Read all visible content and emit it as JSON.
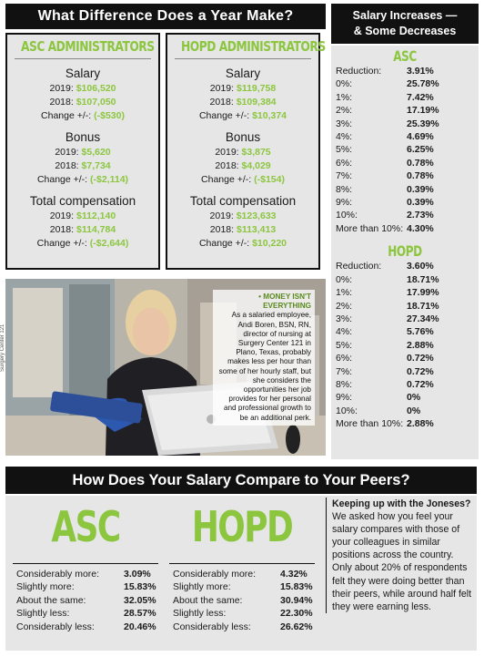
{
  "banner_title": "What Difference Does a Year Make?",
  "asc": {
    "header": "ASC ADMINISTRATORS",
    "salary": {
      "title": "Salary",
      "lines": [
        {
          "label": "2019:",
          "value": "$106,520"
        },
        {
          "label": "2018:",
          "value": "$107,050"
        },
        {
          "label": "Change +/-:",
          "value": "(-$530)"
        }
      ]
    },
    "bonus": {
      "title": "Bonus",
      "lines": [
        {
          "label": "2019:",
          "value": "$5,620"
        },
        {
          "label": "2018:",
          "value": "$7,734"
        },
        {
          "label": "Change +/-:",
          "value": "(-$2,114)"
        }
      ]
    },
    "total": {
      "title": "Total compensation",
      "lines": [
        {
          "label": "2019:",
          "value": "$112,140"
        },
        {
          "label": "2018:",
          "value": "$114,784"
        },
        {
          "label": "Change +/-:",
          "value": "(-$2,644)"
        }
      ]
    }
  },
  "hopd": {
    "header": "HOPD ADMINISTRATORS",
    "salary": {
      "title": "Salary",
      "lines": [
        {
          "label": "2019:",
          "value": "$119,758"
        },
        {
          "label": "2018:",
          "value": "$109,384"
        },
        {
          "label": "Change +/-:",
          "value": "$10,374"
        }
      ]
    },
    "bonus": {
      "title": "Bonus",
      "lines": [
        {
          "label": "2019:",
          "value": "$3,875"
        },
        {
          "label": "2018:",
          "value": "$4,029"
        },
        {
          "label": "Change +/-:",
          "value": "(-$154)"
        }
      ]
    },
    "total": {
      "title": "Total compensation",
      "lines": [
        {
          "label": "2019:",
          "value": "$123,633"
        },
        {
          "label": "2018:",
          "value": "$113,413"
        },
        {
          "label": "Change +/-:",
          "value": "$10,220"
        }
      ]
    }
  },
  "increases": {
    "title_line1": "Salary Increases —",
    "title_line2": "& Some Decreases",
    "asc_title": "ASC",
    "asc_rows": [
      {
        "k": "Reduction:",
        "v": "3.91%"
      },
      {
        "k": "0%:",
        "v": "25.78%"
      },
      {
        "k": "1%:",
        "v": "7.42%"
      },
      {
        "k": "2%:",
        "v": "17.19%"
      },
      {
        "k": "3%:",
        "v": "25.39%"
      },
      {
        "k": "4%:",
        "v": "4.69%"
      },
      {
        "k": "5%:",
        "v": "6.25%"
      },
      {
        "k": "6%:",
        "v": "0.78%"
      },
      {
        "k": "7%:",
        "v": "0.78%"
      },
      {
        "k": "8%:",
        "v": "0.39%"
      },
      {
        "k": "9%:",
        "v": "0.39%"
      },
      {
        "k": "10%:",
        "v": "2.73%"
      },
      {
        "k": "More than 10%:",
        "v": "4.30%"
      }
    ],
    "hopd_title": "HOPD",
    "hopd_rows": [
      {
        "k": "Reduction:",
        "v": "3.60%"
      },
      {
        "k": "0%:",
        "v": "18.71%"
      },
      {
        "k": "1%:",
        "v": "17.99%"
      },
      {
        "k": "2%:",
        "v": "18.71%"
      },
      {
        "k": "3%:",
        "v": "27.34%"
      },
      {
        "k": "4%:",
        "v": "5.76%"
      },
      {
        "k": "5%:",
        "v": "2.88%"
      },
      {
        "k": "6%:",
        "v": "0.72%"
      },
      {
        "k": "7%:",
        "v": "0.72%"
      },
      {
        "k": "8%:",
        "v": "0.72%"
      },
      {
        "k": "9%:",
        "v": "0%"
      },
      {
        "k": "10%:",
        "v": "0%"
      },
      {
        "k": "More than 10%:",
        "v": "2.88%"
      }
    ]
  },
  "photo": {
    "caption_title": "• MONEY ISN'T EVERYTHING",
    "caption_body": "As a salaried employee, Andi Boren, BSN, RN, director of nursing at Surgery Center 121 in Plano, Texas, probably makes less per hour than some of her hourly staff, but she considers the opportunities her job provides for her personal and professional growth to be an additional perk.",
    "credit": "Surgery Center 121"
  },
  "peers": {
    "banner": "How Does Your Salary Compare to Your Peers?",
    "asc_title": "ASC",
    "asc_rows": [
      {
        "k": "Considerably more:",
        "v": "3.09%"
      },
      {
        "k": "Slightly more:",
        "v": "15.83%"
      },
      {
        "k": "About the same:",
        "v": "32.05%"
      },
      {
        "k": "Slightly less:",
        "v": "28.57%"
      },
      {
        "k": "Considerably less:",
        "v": "20.46%"
      }
    ],
    "hopd_title": "HOPD",
    "hopd_rows": [
      {
        "k": "Considerably more:",
        "v": "4.32%"
      },
      {
        "k": "Slightly more:",
        "v": "15.83%"
      },
      {
        "k": "About the same:",
        "v": "30.94%"
      },
      {
        "k": "Slightly less:",
        "v": "22.30%"
      },
      {
        "k": "Considerably less:",
        "v": "26.62%"
      }
    ],
    "joneses_title": "Keeping up with the Joneses?",
    "joneses_body": "We asked how you feel your salary compares with those of your colleagues in similar positions across the country. Only about 20% of respondents felt they were doing better than their peers, while around half felt they were earning less."
  }
}
